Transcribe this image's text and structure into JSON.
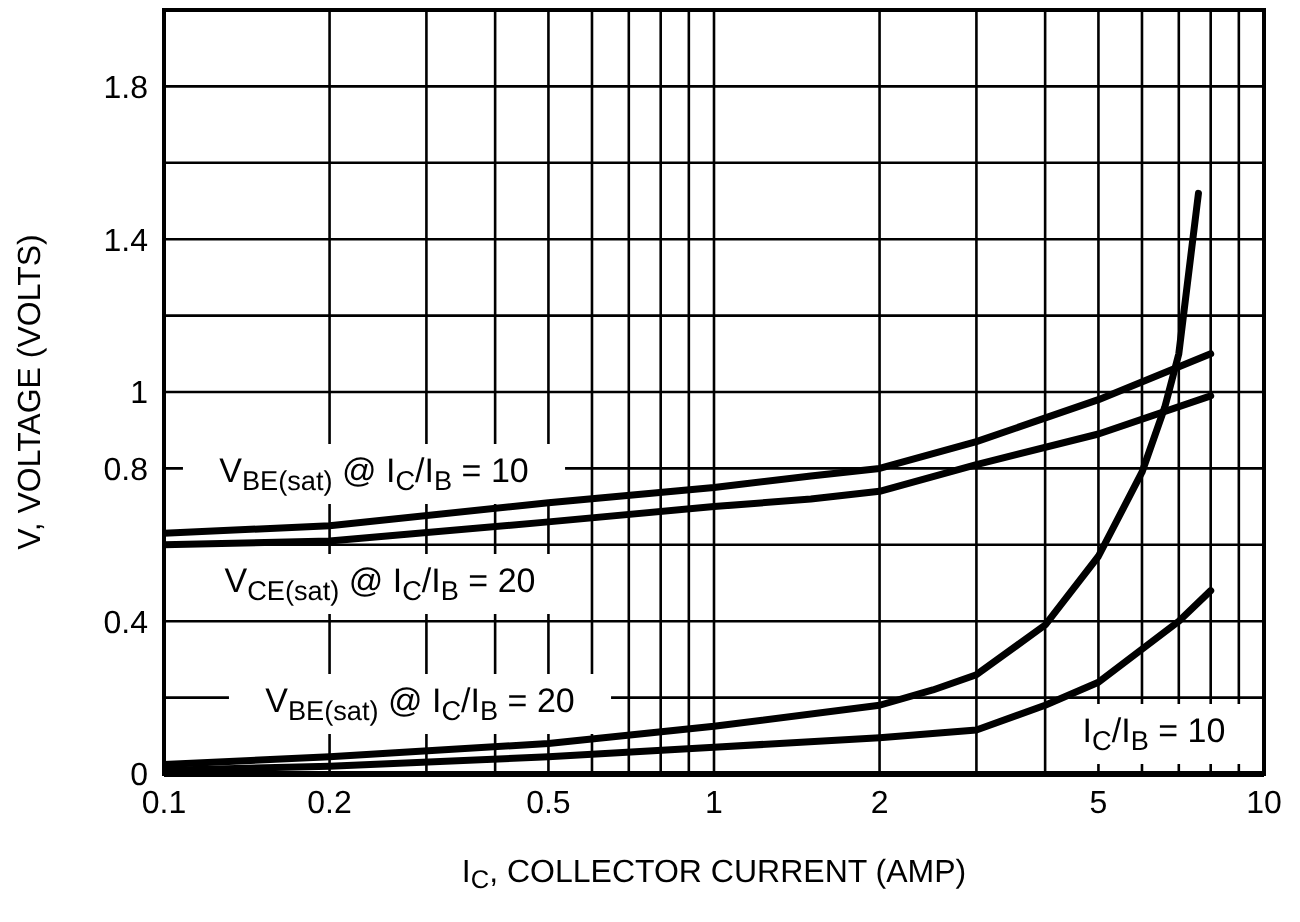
{
  "chart_data": {
    "type": "line",
    "xlabel": "I$_{C}$, COLLECTOR CURRENT (AMP)",
    "ylabel": "V, VOLTAGE (VOLTS)",
    "log": "x",
    "grid": true,
    "marker": "none",
    "line_style": "solid",
    "xlim": [
      0.1,
      10
    ],
    "ylim": [
      0,
      2
    ],
    "xticks": [
      0.1,
      0.2,
      {
        "value": 0.3,
        "label": null
      },
      {
        "value": 0.4,
        "label": null
      },
      0.5,
      {
        "value": 0.6,
        "label": null
      },
      {
        "value": 0.7,
        "label": null
      },
      {
        "value": 0.8,
        "label": null
      },
      {
        "value": 0.9,
        "label": null
      },
      1,
      2,
      {
        "value": 3,
        "label": null
      },
      {
        "value": 4,
        "label": null
      },
      5,
      {
        "value": 6,
        "label": null
      },
      {
        "value": 7,
        "label": null
      },
      {
        "value": 8,
        "label": null
      },
      {
        "value": 9,
        "label": null
      },
      10
    ],
    "yticks": [
      0,
      {
        "value": 0.2,
        "label": null
      },
      0.4,
      {
        "value": 0.6,
        "label": null
      },
      0.8,
      1,
      {
        "value": 1.2,
        "label": null
      },
      1.4,
      {
        "value": 1.6,
        "label": null
      },
      1.8,
      {
        "value": 2,
        "label": null
      }
    ],
    "series": [
      {
        "color": "#000000",
        "x": [
          0.1,
          0.2,
          0.5,
          1,
          1.5,
          2,
          3,
          5,
          8
        ],
        "values": [
          0.63,
          0.65,
          0.71,
          0.75,
          0.78,
          0.8,
          0.87,
          0.98,
          1.1
        ]
      },
      {
        "color": "#000000",
        "x": [
          0.1,
          0.2,
          0.5,
          1,
          1.5,
          2,
          3,
          5,
          8
        ],
        "values": [
          0.6,
          0.61,
          0.66,
          0.7,
          0.72,
          0.74,
          0.81,
          0.89,
          0.99
        ]
      },
      {
        "color": "#000000",
        "x": [
          0.1,
          0.2,
          0.5,
          1,
          2,
          2.5,
          3,
          4,
          5,
          6,
          6.6,
          7,
          7.6
        ],
        "values": [
          0.025,
          0.045,
          0.08,
          0.125,
          0.18,
          0.22,
          0.26,
          0.39,
          0.57,
          0.79,
          0.96,
          1.1,
          1.52
        ]
      },
      {
        "color": "#000000",
        "x": [
          0.1,
          0.2,
          0.5,
          1,
          2,
          3,
          4,
          5,
          7,
          8
        ],
        "values": [
          0.01,
          0.02,
          0.045,
          0.07,
          0.095,
          0.115,
          0.18,
          0.24,
          0.4,
          0.48
        ]
      }
    ],
    "annotations": [
      "V$_{BE(sat)}$ @ I$_{C}$/I$_{B}$ = 10",
      "V$_{CE(sat)}$ @ I$_{C}$/I$_{B}$ = 20",
      "V$_{BE(sat)}$ @ I$_{C}$/I$_{B}$ = 20",
      "I$_{C}$/I$_{B}$ = 10"
    ]
  }
}
